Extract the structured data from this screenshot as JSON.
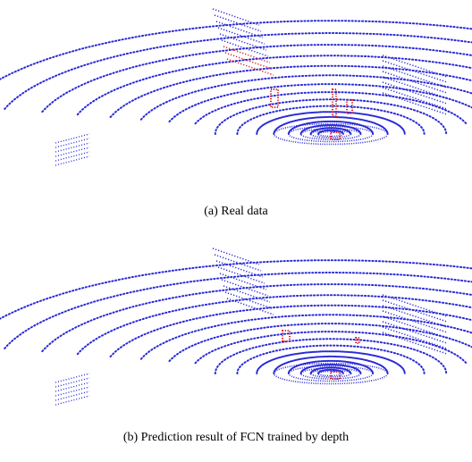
{
  "figure": {
    "panels": [
      {
        "caption": "(a) Real data"
      },
      {
        "caption": "(b) Prediction result of FCN trained by depth"
      }
    ]
  }
}
